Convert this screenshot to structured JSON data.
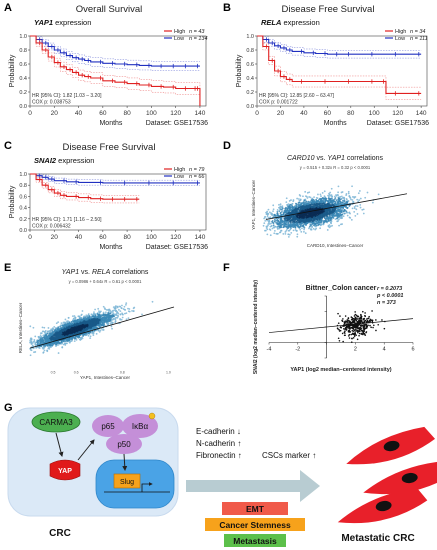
{
  "figure": {
    "panel_labels": [
      "A",
      "B",
      "C",
      "D",
      "E",
      "F",
      "G"
    ]
  },
  "chart_data": [
    {
      "id": "A",
      "type": "line",
      "title": "Overall Survival",
      "subtitle_gene": "YAP1",
      "subtitle_suffix": " expression",
      "xlabel": "Months",
      "ylabel": "Probability",
      "dataset": "Dataset: GSE17536",
      "xlim": [
        0,
        145
      ],
      "ylim": [
        0,
        1
      ],
      "xticks": [
        0,
        20,
        40,
        60,
        80,
        100,
        120,
        140
      ],
      "yticks": [
        0,
        0.2,
        0.4,
        0.6,
        0.8,
        1.0
      ],
      "yticklabels": [
        "0.0",
        "0.2",
        "0.4",
        "0.6",
        "0.8",
        "1.0"
      ],
      "legend": [
        {
          "label": "High",
          "n_label": "n = 43",
          "color": "#e02020"
        },
        {
          "label": "Low",
          "n_label": "n = 134",
          "color": "#2030c0"
        }
      ],
      "annotation": [
        "HR [95% CI]: 1.82 [1.03 – 3.20]",
        "COX p: 0.038753"
      ],
      "series": [
        {
          "name": "Low",
          "color": "#2030c0",
          "x": [
            0,
            5,
            10,
            15,
            20,
            25,
            30,
            35,
            40,
            45,
            50,
            60,
            70,
            80,
            90,
            100,
            110,
            120,
            130,
            140
          ],
          "y": [
            1.0,
            0.95,
            0.9,
            0.85,
            0.8,
            0.76,
            0.72,
            0.69,
            0.67,
            0.65,
            0.63,
            0.61,
            0.6,
            0.59,
            0.58,
            0.57,
            0.57,
            0.57,
            0.57,
            0.57
          ]
        },
        {
          "name": "High",
          "color": "#e02020",
          "x": [
            0,
            5,
            10,
            15,
            20,
            25,
            30,
            35,
            40,
            45,
            50,
            60,
            70,
            80,
            90,
            100,
            110,
            120,
            130,
            138,
            140
          ],
          "y": [
            1.0,
            0.9,
            0.8,
            0.7,
            0.62,
            0.56,
            0.52,
            0.48,
            0.44,
            0.42,
            0.4,
            0.36,
            0.34,
            0.32,
            0.3,
            0.28,
            0.27,
            0.25,
            0.25,
            0.25,
            0.0
          ]
        }
      ]
    },
    {
      "id": "B",
      "type": "line",
      "title": "Disease Free Survival",
      "subtitle_gene": "RELA",
      "subtitle_suffix": " expression",
      "xlabel": "Months",
      "ylabel": "Probability",
      "dataset": "Dataset: GSE17536",
      "xlim": [
        0,
        145
      ],
      "ylim": [
        0,
        1
      ],
      "xticks": [
        0,
        20,
        40,
        60,
        80,
        100,
        120,
        140
      ],
      "yticks": [
        0,
        0.2,
        0.4,
        0.6,
        0.8,
        1.0
      ],
      "yticklabels": [
        "0.0",
        "0.2",
        "0.4",
        "0.6",
        "0.8",
        "1.0"
      ],
      "legend": [
        {
          "label": "High",
          "n_label": "n = 34",
          "color": "#e02020"
        },
        {
          "label": "Low",
          "n_label": "n = 111",
          "color": "#2030c0"
        }
      ],
      "annotation": [
        "HR [95% CI]: 12.85 [2.60 – 63.47]",
        "COX p: 0.001722"
      ],
      "series": [
        {
          "name": "Low",
          "color": "#2030c0",
          "x": [
            0,
            5,
            10,
            15,
            20,
            25,
            30,
            40,
            50,
            60,
            70,
            80,
            100,
            120,
            140
          ],
          "y": [
            1.0,
            0.95,
            0.9,
            0.86,
            0.83,
            0.8,
            0.78,
            0.76,
            0.75,
            0.74,
            0.74,
            0.74,
            0.74,
            0.74,
            0.74
          ]
        },
        {
          "name": "High",
          "color": "#e02020",
          "x": [
            0,
            5,
            10,
            15,
            20,
            25,
            30,
            40,
            60,
            80,
            100,
            110,
            120,
            140
          ],
          "y": [
            1.0,
            0.85,
            0.65,
            0.5,
            0.42,
            0.38,
            0.35,
            0.35,
            0.35,
            0.35,
            0.35,
            0.18,
            0.18,
            0.18
          ]
        }
      ]
    },
    {
      "id": "C",
      "type": "line",
      "title": "Disease Free Survival",
      "subtitle_gene": "SNAI2",
      "subtitle_suffix": " expression",
      "xlabel": "Months",
      "ylabel": "Probability",
      "dataset": "Dataset: GSE17536",
      "xlim": [
        0,
        145
      ],
      "ylim": [
        0,
        1
      ],
      "xticks": [
        0,
        20,
        40,
        60,
        80,
        100,
        120,
        140
      ],
      "yticks": [
        0,
        0.2,
        0.4,
        0.6,
        0.8,
        1.0
      ],
      "yticklabels": [
        "0.0",
        "0.2",
        "0.4",
        "0.6",
        "0.8",
        "1.0"
      ],
      "legend": [
        {
          "label": "High",
          "n_label": "n = 79",
          "color": "#e02020"
        },
        {
          "label": "Low",
          "n_label": "n = 66",
          "color": "#2030c0"
        }
      ],
      "annotation": [
        "HR [95% CI]: 1.71 [1.16 – 2.50]",
        "COX p: 0.006432"
      ],
      "series": [
        {
          "name": "Low",
          "color": "#2030c0",
          "x": [
            0,
            5,
            10,
            15,
            20,
            30,
            40,
            60,
            80,
            100,
            120,
            140
          ],
          "y": [
            1.0,
            0.97,
            0.94,
            0.91,
            0.88,
            0.86,
            0.85,
            0.84,
            0.84,
            0.84,
            0.84,
            0.84
          ]
        },
        {
          "name": "High",
          "color": "#e02020",
          "x": [
            0,
            5,
            10,
            15,
            20,
            25,
            30,
            40,
            50,
            60,
            70,
            80,
            90
          ],
          "y": [
            1.0,
            0.9,
            0.8,
            0.72,
            0.66,
            0.62,
            0.6,
            0.58,
            0.56,
            0.55,
            0.55,
            0.55,
            0.55
          ]
        }
      ]
    },
    {
      "id": "D",
      "type": "scatter",
      "title_gene1": "CARD10",
      "title_mid": " vs. ",
      "title_gene2": "YAP1",
      "title_suffix": " correlations",
      "stats": "y = 0.515 + 0.32x    R = 0.32    p < 0.0001",
      "xlabel": "CARD10, Intestines–Cancer",
      "ylabel": "YAP1, Intestines–Cancer",
      "regression": {
        "intercept": 0.515,
        "slope": 0.32
      },
      "xlim": [
        0,
        1.2
      ],
      "ylim": [
        0,
        1.2
      ]
    },
    {
      "id": "E",
      "type": "scatter",
      "title_gene1": "YAP1",
      "title_mid": " vs. ",
      "title_gene2": "RELA",
      "title_suffix": " correlations",
      "stats": "y = 0.0986 + 0.64x    R = 0.61    p < 0.0001",
      "xlabel": "YAP1, Intestines–Cancer",
      "ylabel": "RELA, Intestines–Cancer",
      "xticks": [
        0.5,
        0.6,
        0.8,
        1.0
      ],
      "xticklabels": [
        "0.5",
        "0.6",
        "0.8",
        "1.0"
      ],
      "regression": {
        "intercept": 0.0986,
        "slope": 0.64
      },
      "xlim": [
        0.4,
        1.05
      ],
      "ylim": [
        0.3,
        0.9
      ]
    },
    {
      "id": "F",
      "type": "scatter",
      "title": "Bittner_Colon cancer",
      "stats": [
        "r = 0.2073",
        "p < 0.0001",
        "n = 373"
      ],
      "xlabel": "YAP1 (log2 median–centered intensity)",
      "ylabel": "SNAI2 (log2 median–centered intensity)",
      "xlim": [
        -4,
        6
      ],
      "ylim": [
        -2,
        6
      ],
      "xticks": [
        -4,
        -2,
        0,
        2,
        4,
        6
      ],
      "yticks": [
        -2,
        0,
        2,
        4,
        6
      ],
      "regression": {
        "intercept": 2.0,
        "slope": 0.18
      }
    }
  ],
  "diagram": {
    "nodes": {
      "carma3": "CARMA3",
      "yap": "YAP",
      "p65": "p65",
      "ikba": "IκBα",
      "p50": "p50",
      "slug": "Slug",
      "crc": "CRC",
      "metastatic": "Metastatic CRC"
    },
    "markers": [
      {
        "name": "E-cadherin",
        "arrow": "↓"
      },
      {
        "name": "N-cadherin",
        "arrow": "↑"
      },
      {
        "name": "Fibronectin",
        "arrow": "↑"
      }
    ],
    "csc_marker": "CSCs marker ↑",
    "outcomes": [
      {
        "label": "EMT",
        "color": "#f05a4a"
      },
      {
        "label": "Cancer Stemness",
        "color": "#f7a21b"
      },
      {
        "label": "Metastasis",
        "color": "#5cc04a"
      }
    ],
    "colors": {
      "cell_bg": "#dbe9f7",
      "yap": "#e01a1a",
      "carma3": "#4caf50",
      "nfkb": "#c48fd8",
      "nucleus": "#4aa3e6",
      "slug": "#f7a21b",
      "metastatic_cell": "#e8202a"
    }
  }
}
